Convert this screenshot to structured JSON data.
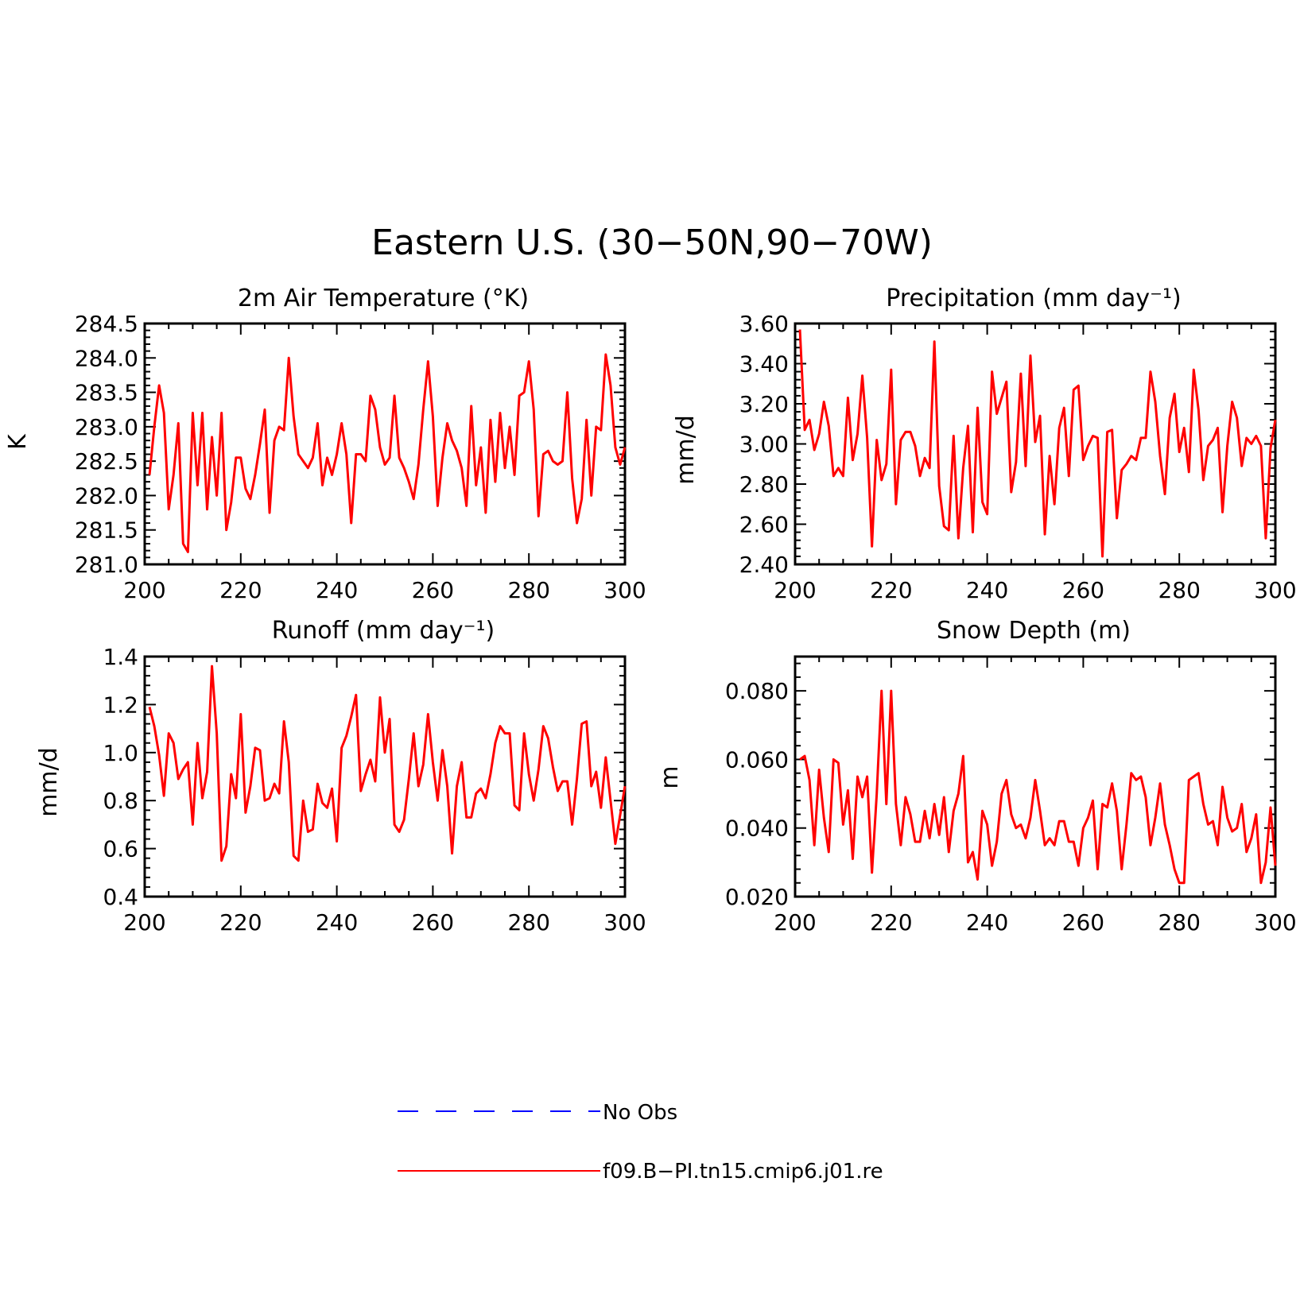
{
  "figure": {
    "title": "Eastern U.S. (30−50N,90−70W)",
    "line_color": "#ff0000",
    "obs_color": "#0000ff",
    "background": "#ffffff"
  },
  "legend": {
    "entries": [
      {
        "label": "No Obs",
        "style": "dashed",
        "color": "#0000ff"
      },
      {
        "label": "f09.B−PI.tn15.cmip6.j01.re",
        "style": "solid",
        "color": "#ff0000"
      }
    ]
  },
  "chart_data": [
    {
      "type": "line",
      "title": "2m Air Temperature (°K)",
      "ylabel": "K",
      "xlim": [
        200,
        300
      ],
      "ylim": [
        281.0,
        284.5
      ],
      "xticks": [
        200,
        220,
        240,
        260,
        280,
        300
      ],
      "xtick_labels": [
        "200",
        "220",
        "240",
        "260",
        "280",
        "300"
      ],
      "yticks": [
        281.0,
        281.5,
        282.0,
        282.5,
        283.0,
        283.5,
        284.0,
        284.5
      ],
      "ytick_labels": [
        "281.0",
        "281.5",
        "282.0",
        "282.5",
        "283.0",
        "283.5",
        "284.0",
        "284.5"
      ],
      "x_start": 201,
      "x_step": 1,
      "series": [
        {
          "name": "f09.B−PI.tn15.cmip6.j01.re",
          "color": "#ff0000",
          "values": [
            282.3,
            283.0,
            283.6,
            283.2,
            281.8,
            282.3,
            283.05,
            281.3,
            281.18,
            283.2,
            282.15,
            283.2,
            281.8,
            282.85,
            282.0,
            283.2,
            281.5,
            281.9,
            282.55,
            282.55,
            282.1,
            281.95,
            282.3,
            282.75,
            283.25,
            281.75,
            282.8,
            283.0,
            282.95,
            284.0,
            283.15,
            282.6,
            282.5,
            282.4,
            282.55,
            283.05,
            282.15,
            282.55,
            282.3,
            282.6,
            283.05,
            282.6,
            281.6,
            282.6,
            282.6,
            282.5,
            283.45,
            283.25,
            282.7,
            282.45,
            282.55,
            283.45,
            282.55,
            282.4,
            282.2,
            281.95,
            282.45,
            283.25,
            283.95,
            283.15,
            281.85,
            282.55,
            283.05,
            282.8,
            282.65,
            282.4,
            281.85,
            283.3,
            282.15,
            282.7,
            281.75,
            283.1,
            282.2,
            283.2,
            282.4,
            283.0,
            282.3,
            283.45,
            283.5,
            283.95,
            283.25,
            281.7,
            282.6,
            282.65,
            282.5,
            282.45,
            282.5,
            283.5,
            282.25,
            281.6,
            281.95,
            283.1,
            282.0,
            283.0,
            282.95,
            284.05,
            283.6,
            282.7,
            282.45,
            282.7
          ]
        }
      ]
    },
    {
      "type": "line",
      "title": "Precipitation (mm day⁻¹)",
      "ylabel": "mm/d",
      "xlim": [
        200,
        300
      ],
      "ylim": [
        2.4,
        3.6
      ],
      "xticks": [
        200,
        220,
        240,
        260,
        280,
        300
      ],
      "xtick_labels": [
        "200",
        "220",
        "240",
        "260",
        "280",
        "300"
      ],
      "yticks": [
        2.4,
        2.6,
        2.8,
        3.0,
        3.2,
        3.4,
        3.6
      ],
      "ytick_labels": [
        "2.40",
        "2.60",
        "2.80",
        "3.00",
        "3.20",
        "3.40",
        "3.60"
      ],
      "x_start": 201,
      "x_step": 1,
      "series": [
        {
          "name": "f09.B−PI.tn15.cmip6.j01.re",
          "color": "#ff0000",
          "values": [
            3.57,
            3.07,
            3.12,
            2.97,
            3.05,
            3.21,
            3.09,
            2.84,
            2.88,
            2.84,
            3.23,
            2.92,
            3.05,
            3.34,
            3.03,
            2.49,
            3.02,
            2.82,
            2.9,
            3.37,
            2.7,
            3.02,
            3.06,
            3.06,
            2.99,
            2.84,
            2.93,
            2.88,
            3.51,
            2.79,
            2.59,
            2.57,
            3.04,
            2.53,
            2.88,
            3.09,
            2.56,
            3.18,
            2.71,
            2.65,
            3.36,
            3.15,
            3.23,
            3.31,
            2.76,
            2.91,
            3.35,
            2.89,
            3.44,
            3.01,
            3.14,
            2.55,
            2.94,
            2.7,
            3.08,
            3.18,
            2.84,
            3.27,
            3.29,
            2.92,
            2.99,
            3.04,
            3.03,
            2.44,
            3.06,
            3.07,
            2.63,
            2.87,
            2.9,
            2.94,
            2.92,
            3.03,
            3.03,
            3.36,
            3.21,
            2.94,
            2.75,
            3.13,
            3.25,
            2.96,
            3.08,
            2.86,
            3.37,
            3.17,
            2.82,
            2.99,
            3.02,
            3.08,
            2.66,
            2.99,
            3.21,
            3.13,
            2.89,
            3.03,
            3.0,
            3.04,
            2.99,
            2.53,
            2.98,
            3.12
          ]
        }
      ]
    },
    {
      "type": "line",
      "title": "Runoff (mm day⁻¹)",
      "ylabel": "mm/d",
      "xlim": [
        200,
        300
      ],
      "ylim": [
        0.4,
        1.4
      ],
      "xticks": [
        200,
        220,
        240,
        260,
        280,
        300
      ],
      "xtick_labels": [
        "200",
        "220",
        "240",
        "260",
        "280",
        "300"
      ],
      "yticks": [
        0.4,
        0.6,
        0.8,
        1.0,
        1.2,
        1.4
      ],
      "ytick_labels": [
        "0.4",
        "0.6",
        "0.8",
        "1.0",
        "1.2",
        "1.4"
      ],
      "x_start": 201,
      "x_step": 1,
      "series": [
        {
          "name": "f09.B−PI.tn15.cmip6.j01.re",
          "color": "#ff0000",
          "values": [
            1.19,
            1.11,
            0.99,
            0.82,
            1.08,
            1.04,
            0.89,
            0.93,
            0.96,
            0.7,
            1.04,
            0.81,
            0.92,
            1.36,
            1.08,
            0.55,
            0.61,
            0.91,
            0.81,
            1.16,
            0.75,
            0.86,
            1.02,
            1.01,
            0.8,
            0.81,
            0.87,
            0.83,
            1.13,
            0.96,
            0.57,
            0.55,
            0.8,
            0.67,
            0.68,
            0.87,
            0.79,
            0.77,
            0.85,
            0.63,
            1.02,
            1.07,
            1.15,
            1.24,
            0.84,
            0.91,
            0.97,
            0.88,
            1.23,
            1.0,
            1.14,
            0.7,
            0.67,
            0.72,
            0.89,
            1.08,
            0.86,
            0.95,
            1.16,
            0.96,
            0.8,
            1.01,
            0.86,
            0.58,
            0.86,
            0.96,
            0.73,
            0.73,
            0.83,
            0.85,
            0.81,
            0.91,
            1.04,
            1.11,
            1.08,
            1.08,
            0.78,
            0.76,
            1.08,
            0.91,
            0.8,
            0.93,
            1.11,
            1.06,
            0.94,
            0.84,
            0.88,
            0.88,
            0.7,
            0.89,
            1.12,
            1.13,
            0.86,
            0.92,
            0.77,
            0.98,
            0.8,
            0.62,
            0.74,
            0.86
          ]
        }
      ]
    },
    {
      "type": "line",
      "title": "Snow Depth (m)",
      "ylabel": "m",
      "xlim": [
        200,
        300
      ],
      "ylim": [
        0.02,
        0.09
      ],
      "xticks": [
        200,
        220,
        240,
        260,
        280,
        300
      ],
      "xtick_labels": [
        "200",
        "220",
        "240",
        "260",
        "280",
        "300"
      ],
      "yticks": [
        0.02,
        0.04,
        0.06,
        0.08
      ],
      "ytick_labels": [
        "0.020",
        "0.040",
        "0.060",
        "0.080"
      ],
      "x_start": 201,
      "x_step": 1,
      "series": [
        {
          "name": "f09.B−PI.tn15.cmip6.j01.re",
          "color": "#ff0000",
          "values": [
            0.06,
            0.061,
            0.054,
            0.035,
            0.057,
            0.043,
            0.033,
            0.06,
            0.059,
            0.041,
            0.051,
            0.031,
            0.055,
            0.049,
            0.055,
            0.027,
            0.05,
            0.08,
            0.047,
            0.08,
            0.047,
            0.035,
            0.049,
            0.044,
            0.036,
            0.036,
            0.045,
            0.037,
            0.047,
            0.038,
            0.049,
            0.033,
            0.045,
            0.05,
            0.061,
            0.03,
            0.033,
            0.025,
            0.045,
            0.041,
            0.029,
            0.036,
            0.05,
            0.054,
            0.044,
            0.04,
            0.041,
            0.037,
            0.043,
            0.054,
            0.045,
            0.035,
            0.037,
            0.035,
            0.042,
            0.042,
            0.036,
            0.036,
            0.029,
            0.04,
            0.043,
            0.048,
            0.028,
            0.047,
            0.046,
            0.053,
            0.045,
            0.028,
            0.041,
            0.056,
            0.054,
            0.055,
            0.049,
            0.035,
            0.043,
            0.053,
            0.041,
            0.035,
            0.028,
            0.024,
            0.024,
            0.054,
            0.055,
            0.056,
            0.047,
            0.041,
            0.042,
            0.035,
            0.052,
            0.043,
            0.039,
            0.04,
            0.047,
            0.033,
            0.037,
            0.044,
            0.024,
            0.03,
            0.046,
            0.029
          ]
        }
      ]
    }
  ]
}
